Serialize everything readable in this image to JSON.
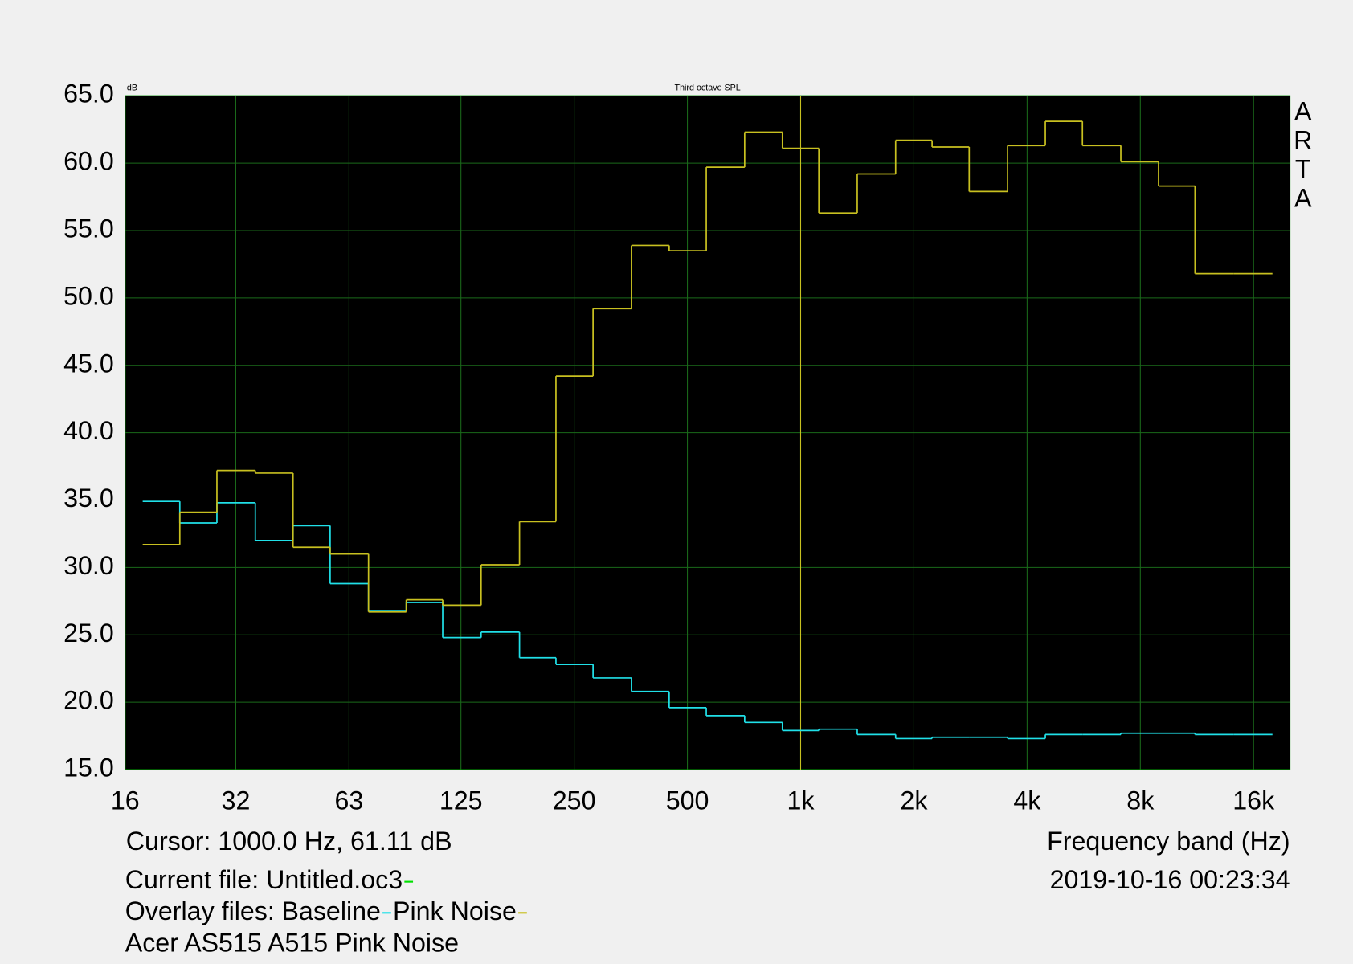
{
  "chart_data": {
    "type": "step",
    "title": "Third octave SPL",
    "y_unit": "dB",
    "x_label": "Frequency band (Hz)",
    "watermark": "ARTA",
    "cursor_text": "Cursor:  1000.0 Hz, 61.11 dB",
    "timestamp": "2019-10-16  00:23:34",
    "current_file": "Current file: Untitled.oc3",
    "current_file_color": "#00e000",
    "overlay_label": "Overlay files:",
    "note": "Acer AS515 A515 Pink Noise",
    "x_scale": "log",
    "grid": true,
    "xlim": [
      16,
      20000
    ],
    "ylim": [
      15,
      65
    ],
    "xticks": [
      16,
      {
        "value": 31.5,
        "label": "32"
      },
      63,
      125,
      250,
      500,
      {
        "value": 1000,
        "label": "1k"
      },
      {
        "value": 2000,
        "label": "2k"
      },
      {
        "value": 4000,
        "label": "4k"
      },
      {
        "value": 8000,
        "label": "8k"
      },
      {
        "value": 16000,
        "label": "16k"
      }
    ],
    "yticks": [
      {
        "value": 15,
        "label": "15.0"
      },
      {
        "value": 20,
        "label": "20.0"
      },
      {
        "value": 25,
        "label": "25.0"
      },
      {
        "value": 30,
        "label": "30.0"
      },
      {
        "value": 35,
        "label": "35.0"
      },
      {
        "value": 40,
        "label": "40.0"
      },
      {
        "value": 45,
        "label": "45.0"
      },
      {
        "value": 50,
        "label": "50.0"
      },
      {
        "value": 55,
        "label": "55.0"
      },
      {
        "value": 60,
        "label": "60.0"
      },
      {
        "value": 65,
        "label": "65.0"
      }
    ],
    "x": [
      20,
      25,
      31.5,
      40,
      50,
      63,
      80,
      100,
      125,
      160,
      200,
      250,
      315,
      400,
      500,
      630,
      800,
      1000,
      1250,
      1600,
      2000,
      2500,
      3150,
      4000,
      5000,
      6300,
      8000,
      10000,
      12500,
      16000
    ],
    "series": [
      {
        "name": "Baseline",
        "color": "#20e0e8",
        "values": [
          34.9,
          33.3,
          34.8,
          32.0,
          33.1,
          28.8,
          26.8,
          27.4,
          24.8,
          25.2,
          23.3,
          22.8,
          21.8,
          20.8,
          19.6,
          19.0,
          18.5,
          17.9,
          18.0,
          17.6,
          17.3,
          17.4,
          17.4,
          17.3,
          17.6,
          17.6,
          17.7,
          17.7,
          17.6,
          17.6
        ]
      },
      {
        "name": "Pink Noise",
        "color": "#c8c020",
        "values": [
          31.7,
          34.1,
          37.2,
          37.0,
          31.5,
          31.0,
          26.7,
          27.6,
          27.2,
          30.2,
          33.4,
          44.2,
          49.2,
          53.9,
          53.5,
          59.7,
          62.3,
          61.1,
          56.3,
          59.2,
          61.7,
          61.2,
          57.9,
          61.3,
          63.1,
          61.3,
          60.1,
          58.3,
          51.8,
          51.8
        ]
      }
    ]
  }
}
